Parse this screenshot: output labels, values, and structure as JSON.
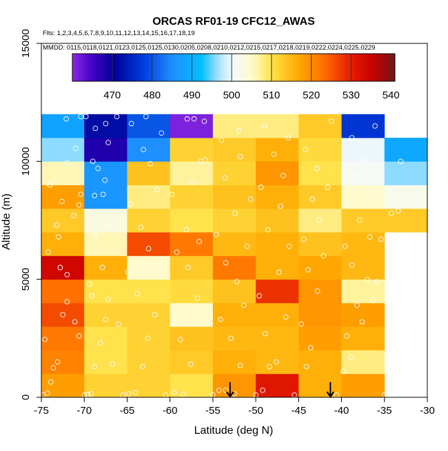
{
  "chart_data": {
    "type": "heatmap",
    "title": "ORCAS RF01-19 CFC12_AWAS",
    "flights_label": "Flts: 1,2,3,4,5,6,7,8,9,10,11,12,13,14,15,16,17,18,19",
    "dates_label": "MMDD: 0115,0118,0121,0123,0125,0125,0130,0205,0208,0210,0212,0215,0217,0218,0219,0222,0224,0225,0229",
    "xlabel": "Latitude (deg N)",
    "ylabel": "Altitude (m)",
    "xlim": [
      -75,
      -30
    ],
    "ylim": [
      0,
      15000
    ],
    "x_ticks": [
      -75,
      -70,
      -65,
      -60,
      -55,
      -50,
      -45,
      -40,
      -35,
      -30
    ],
    "y_ticks": [
      0,
      5000,
      10000,
      15000
    ],
    "colorbar": {
      "min": 460,
      "max": 541,
      "ticks": [
        470,
        480,
        490,
        500,
        510,
        520,
        530,
        540
      ]
    },
    "bin_width_deg": 5,
    "bin_height_m": 1000,
    "lat_bin_starts": [
      -75,
      -70,
      -65,
      -60,
      -55,
      -50,
      -45,
      -40,
      -35
    ],
    "alt_bin_starts": [
      0,
      1000,
      2000,
      3000,
      4000,
      5000,
      6000,
      7000,
      8000,
      9000,
      10000,
      11000
    ],
    "grid_values": [
      [
        518,
        512,
        512,
        510,
        519,
        531,
        516,
        518,
        null
      ],
      [
        521,
        510,
        512,
        513,
        516,
        515,
        516,
        508,
        null
      ],
      [
        522,
        510,
        512,
        514,
        515,
        515,
        518,
        516,
        null
      ],
      [
        526,
        512,
        512,
        505,
        516,
        516,
        519,
        518,
        null
      ],
      [
        523,
        510,
        510,
        511,
        514,
        528,
        519,
        507,
        null
      ],
      [
        534,
        516,
        505,
        513,
        522,
        516,
        517,
        515,
        null
      ],
      [
        516,
        506,
        526,
        522,
        515,
        516,
        514,
        515,
        null
      ],
      [
        513,
        503,
        512,
        510,
        512,
        514,
        508,
        513,
        513
      ],
      [
        518,
        486,
        508,
        512,
        514,
        516,
        513,
        505,
        502
      ],
      [
        506,
        486,
        514,
        507,
        512,
        519,
        510,
        501,
        496
      ],
      [
        496,
        468,
        485,
        512,
        513,
        516,
        511,
        500,
        489
      ],
      [
        488,
        472,
        480,
        461,
        508,
        508,
        513,
        477,
        null
      ]
    ],
    "samples": [
      [
        -74.8,
        100
      ],
      [
        -74.3,
        180
      ],
      [
        -73.9,
        650
      ],
      [
        -73.6,
        1250
      ],
      [
        -74.6,
        2450
      ],
      [
        -73.1,
        1500
      ],
      [
        -72.5,
        3500
      ],
      [
        -72.0,
        4050
      ],
      [
        -71.1,
        3200
      ],
      [
        -70.6,
        2600
      ],
      [
        -72.0,
        5200
      ],
      [
        -72.8,
        5500
      ],
      [
        -74.2,
        6150
      ],
      [
        -73.0,
        6800
      ],
      [
        -71.2,
        7700
      ],
      [
        -70.6,
        8150
      ],
      [
        -70.4,
        8600
      ],
      [
        -72.6,
        8300
      ],
      [
        -71.0,
        10550
      ],
      [
        -72.1,
        11800
      ],
      [
        -70.4,
        11900
      ],
      [
        -74.0,
        9000
      ],
      [
        -73.2,
        7300
      ],
      [
        -72.0,
        9950
      ],
      [
        -70.0,
        100
      ],
      [
        -69.6,
        120
      ],
      [
        -69.2,
        150
      ],
      [
        -68.8,
        1300
      ],
      [
        -68.1,
        2300
      ],
      [
        -67.5,
        3300
      ],
      [
        -69.1,
        4300
      ],
      [
        -67.9,
        5500
      ],
      [
        -68.7,
        6900
      ],
      [
        -67.3,
        7300
      ],
      [
        -67.8,
        8600
      ],
      [
        -68.8,
        8550
      ],
      [
        -68.4,
        9700
      ],
      [
        -67.6,
        9200
      ],
      [
        -69.0,
        10000
      ],
      [
        -67.2,
        10800
      ],
      [
        -67.5,
        11600
      ],
      [
        -68.7,
        11400
      ],
      [
        -69.8,
        11900
      ],
      [
        -66.2,
        11900
      ],
      [
        -66.7,
        1400
      ],
      [
        -66.0,
        3100
      ],
      [
        -67.2,
        4150
      ],
      [
        -69.4,
        4800
      ],
      [
        -65.5,
        100
      ],
      [
        -64.8,
        150
      ],
      [
        -64.0,
        200
      ],
      [
        -63.2,
        1300
      ],
      [
        -62.6,
        2500
      ],
      [
        -61.8,
        3500
      ],
      [
        -63.8,
        4400
      ],
      [
        -64.9,
        5300
      ],
      [
        -61.4,
        5600
      ],
      [
        -62.5,
        6300
      ],
      [
        -63.4,
        7200
      ],
      [
        -64.6,
        8200
      ],
      [
        -61.5,
        8800
      ],
      [
        -62.3,
        9900
      ],
      [
        -64.5,
        11600
      ],
      [
        -62.8,
        11900
      ],
      [
        -61.0,
        11200
      ],
      [
        -63.1,
        10500
      ],
      [
        -60.5,
        100
      ],
      [
        -59.5,
        200
      ],
      [
        -58.4,
        120
      ],
      [
        -57.6,
        1400
      ],
      [
        -58.8,
        2450
      ],
      [
        -59.6,
        3200
      ],
      [
        -56.8,
        4200
      ],
      [
        -57.9,
        5500
      ],
      [
        -59.2,
        6150
      ],
      [
        -56.6,
        6600
      ],
      [
        -58.1,
        7100
      ],
      [
        -59.8,
        8600
      ],
      [
        -57.4,
        9100
      ],
      [
        -56.4,
        10000
      ],
      [
        -55.9,
        10050
      ],
      [
        -58.0,
        11800
      ],
      [
        -57.2,
        11800
      ],
      [
        -56.0,
        11700
      ],
      [
        -55.0,
        100
      ],
      [
        -54.3,
        300
      ],
      [
        -53.5,
        300
      ],
      [
        -52.5,
        150
      ],
      [
        -51.8,
        1350
      ],
      [
        -52.9,
        2500
      ],
      [
        -54.1,
        3300
      ],
      [
        -51.4,
        3900
      ],
      [
        -52.2,
        4900
      ],
      [
        -53.5,
        5700
      ],
      [
        -51.0,
        6400
      ],
      [
        -54.6,
        6900
      ],
      [
        -52.4,
        7800
      ],
      [
        -50.6,
        8400
      ],
      [
        -53.6,
        9300
      ],
      [
        -51.8,
        10200
      ],
      [
        -54.0,
        10900
      ],
      [
        -52.0,
        11300
      ],
      [
        -50.0,
        100
      ],
      [
        -49.2,
        300
      ],
      [
        -48.4,
        1300
      ],
      [
        -47.6,
        1500
      ],
      [
        -48.9,
        2700
      ],
      [
        -46.5,
        3400
      ],
      [
        -49.6,
        4300
      ],
      [
        -47.3,
        5300
      ],
      [
        -46.1,
        6400
      ],
      [
        -48.6,
        7100
      ],
      [
        -47.1,
        8100
      ],
      [
        -49.4,
        8900
      ],
      [
        -46.8,
        9400
      ],
      [
        -47.9,
        10300
      ],
      [
        -46.2,
        11000
      ],
      [
        -49.0,
        11500
      ],
      [
        -45.5,
        100
      ],
      [
        -44.1,
        1300
      ],
      [
        -43.6,
        2100
      ],
      [
        -44.7,
        3100
      ],
      [
        -42.8,
        4500
      ],
      [
        -43.9,
        5400
      ],
      [
        -42.1,
        6000
      ],
      [
        -44.4,
        6700
      ],
      [
        -42.6,
        7500
      ],
      [
        -43.4,
        8400
      ],
      [
        -41.6,
        8900
      ],
      [
        -42.9,
        9700
      ],
      [
        -44.2,
        10500
      ],
      [
        -41.2,
        11700
      ],
      [
        -40.6,
        100
      ],
      [
        -39.8,
        1100
      ],
      [
        -38.9,
        1700
      ],
      [
        -39.4,
        2600
      ],
      [
        -37.6,
        3200
      ],
      [
        -38.2,
        3900
      ],
      [
        -36.3,
        4100
      ],
      [
        -37.0,
        5000
      ],
      [
        -38.8,
        5600
      ],
      [
        -39.6,
        6400
      ],
      [
        -36.7,
        6800
      ],
      [
        -37.9,
        7500
      ],
      [
        -39.2,
        8200
      ],
      [
        -36.0,
        8700
      ],
      [
        -38.4,
        9400
      ],
      [
        -37.2,
        10100
      ],
      [
        -38.8,
        11000
      ],
      [
        -36.1,
        11500
      ],
      [
        -35.0,
        100
      ],
      [
        -35.9,
        4900
      ],
      [
        -35.4,
        6700
      ],
      [
        -34.2,
        7800
      ],
      [
        -33.4,
        7900
      ],
      [
        -33.1,
        10000
      ]
    ],
    "arrows_lat": [
      -53.0,
      -41.3
    ]
  }
}
